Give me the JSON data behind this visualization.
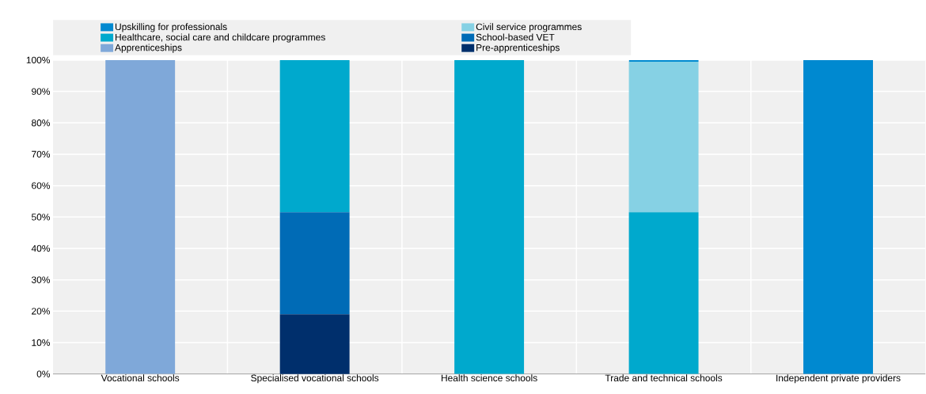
{
  "chart_data": {
    "type": "bar",
    "stacked": true,
    "categories": [
      "Vocational schools",
      "Specialised vocational schools",
      "Health science schools",
      "Trade and technical schools",
      "Independent private providers"
    ],
    "series": [
      {
        "name": "Pre-apprenticeships",
        "color": "#002f6c",
        "values": [
          0,
          19,
          0,
          0,
          0
        ]
      },
      {
        "name": "Apprenticeships",
        "color": "#7fa8d9",
        "values": [
          100,
          0,
          0,
          0,
          0
        ]
      },
      {
        "name": "School-based VET",
        "color": "#006bb6",
        "values": [
          0,
          32.5,
          0,
          0,
          0
        ]
      },
      {
        "name": "Healthcare, social care and childcare programmes",
        "color": "#00a9cd",
        "values": [
          0,
          48.5,
          100,
          51.5,
          0
        ]
      },
      {
        "name": "Civil service programmes",
        "color": "#86d1e4",
        "values": [
          0,
          0,
          0,
          48,
          0
        ]
      },
      {
        "name": "Upskilling for professionals",
        "color": "#0089d0",
        "values": [
          0,
          0,
          0,
          0.5,
          100
        ]
      }
    ],
    "ylim": [
      0,
      100
    ],
    "yticks": [
      {
        "value": 0,
        "label": "0%"
      },
      {
        "value": 10,
        "label": "10%"
      },
      {
        "value": 20,
        "label": "20%"
      },
      {
        "value": 30,
        "label": "30%"
      },
      {
        "value": 40,
        "label": "40%"
      },
      {
        "value": 50,
        "label": "50%"
      },
      {
        "value": 60,
        "label": "60%"
      },
      {
        "value": 70,
        "label": "70%"
      },
      {
        "value": 80,
        "label": "80%"
      },
      {
        "value": 90,
        "label": "90%"
      },
      {
        "value": 100,
        "label": "100%"
      }
    ],
    "grid": true,
    "legend": "top"
  }
}
